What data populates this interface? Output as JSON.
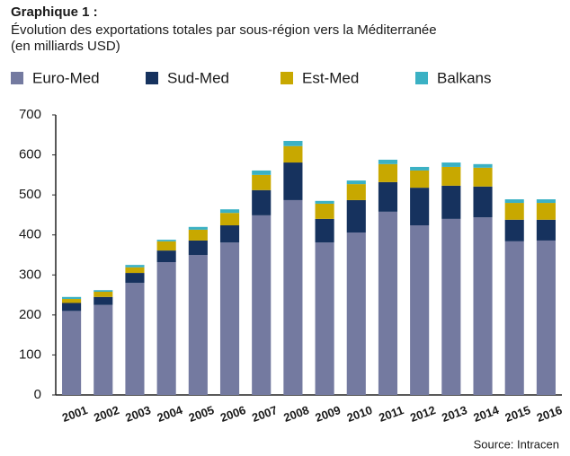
{
  "chart_data": {
    "type": "bar",
    "stacked": true,
    "title": "Graphique 1 :",
    "subtitle": "Évolution des exportations totales par sous-région vers la Méditerranée",
    "unit_label": "(en milliards USD)",
    "source": "Source: Intracen",
    "categories": [
      "2001",
      "2002",
      "2003",
      "2004",
      "2005",
      "2006",
      "2007",
      "2008",
      "2009",
      "2010",
      "2011",
      "2012",
      "2013",
      "2014",
      "2015",
      "2016"
    ],
    "series": [
      {
        "name": "Euro-Med",
        "color": "#747aa0",
        "values": [
          210,
          225,
          280,
          332,
          350,
          381,
          449,
          487,
          381,
          406,
          458,
          424,
          440,
          444,
          384,
          386
        ]
      },
      {
        "name": "Sud-Med",
        "color": "#16325e",
        "values": [
          20,
          20,
          25,
          29,
          36,
          43,
          63,
          94,
          59,
          81,
          74,
          94,
          83,
          77,
          54,
          52
        ]
      },
      {
        "name": "Est-Med",
        "color": "#c8a800",
        "values": [
          10,
          13,
          14,
          23,
          27,
          31,
          38,
          41,
          38,
          40,
          45,
          43,
          47,
          47,
          42,
          42
        ]
      },
      {
        "name": "Balkans",
        "color": "#3bb1c4",
        "values": [
          5,
          4,
          6,
          4,
          7,
          9,
          11,
          13,
          7,
          9,
          11,
          9,
          11,
          9,
          9,
          9
        ]
      }
    ],
    "ylim": [
      0,
      700
    ],
    "yticks": [
      0,
      100,
      200,
      300,
      400,
      500,
      600,
      700
    ],
    "grid": false
  }
}
